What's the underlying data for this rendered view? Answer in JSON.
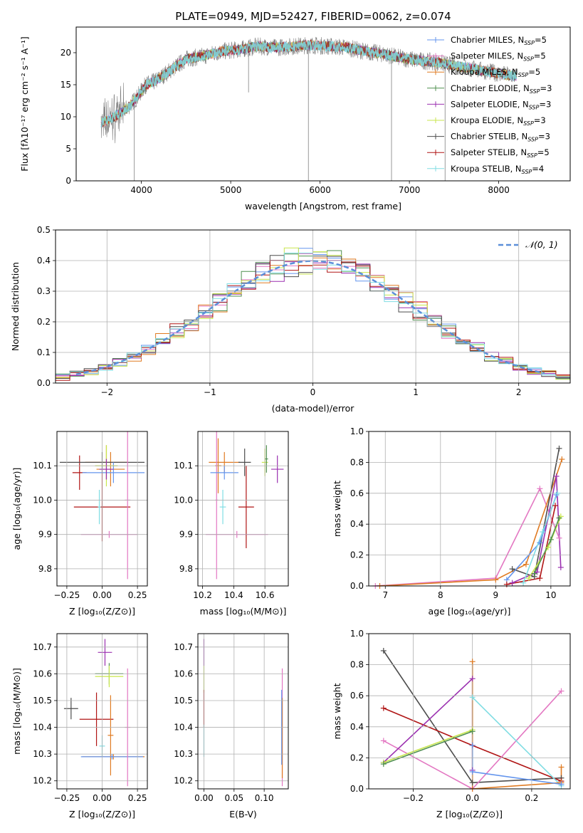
{
  "figure": {
    "title": "PLATE=0949, MJD=52427, FIBERID=0062, z=0.074"
  },
  "chart_data": [
    {
      "id": "spectrum",
      "type": "line",
      "xlabel": "wavelength [Angstrom, rest frame]",
      "ylabel": "Flux [fλ10⁻¹⁷ erg cm⁻² s⁻¹ A⁻¹]",
      "xlim": [
        3270,
        8800
      ],
      "ylim": [
        0,
        24
      ],
      "xticks": [
        4000,
        5000,
        6000,
        7000,
        8000
      ],
      "yticks": [
        0,
        5,
        10,
        15,
        20
      ],
      "grid": false,
      "legend_position": "upper right",
      "legend": [
        {
          "label": "Chabrier MILES, N",
          "sub": "SSP",
          "eq": "=5",
          "color": "#6495ed"
        },
        {
          "label": "Salpeter MILES, N",
          "sub": "SSP",
          "eq": "=5",
          "color": "#e377c2"
        },
        {
          "label": "Kroupa MILES, N",
          "sub": "SSP",
          "eq": "=5",
          "color": "#e07b22"
        },
        {
          "label": "Chabrier ELODIE, N",
          "sub": "SSP",
          "eq": "=3",
          "color": "#4f8f4f"
        },
        {
          "label": "Salpeter ELODIE, N",
          "sub": "SSP",
          "eq": "=3",
          "color": "#9b30b0"
        },
        {
          "label": "Kroupa ELODIE, N",
          "sub": "SSP",
          "eq": "=3",
          "color": "#c8e64c"
        },
        {
          "label": "Chabrier STELIB, N",
          "sub": "SSP",
          "eq": "=3",
          "color": "#4d4d4d"
        },
        {
          "label": "Salpeter STELIB, N",
          "sub": "SSP",
          "eq": "=5",
          "color": "#b01515"
        },
        {
          "label": "Kroupa STELIB, N",
          "sub": "SSP",
          "eq": "=4",
          "color": "#80dde3"
        }
      ],
      "continuum": {
        "wavelength": [
          3550,
          3700,
          3850,
          3950,
          4050,
          4150,
          4250,
          4400,
          4500,
          4700,
          4900,
          5100,
          5300,
          5500,
          5700,
          5900,
          6100,
          6300,
          6500,
          6700,
          6900,
          7100,
          7300,
          7500,
          7700,
          7900,
          8100,
          8200
        ],
        "flux": [
          9.0,
          10.0,
          11.5,
          13.0,
          15.0,
          15.5,
          16.5,
          18.0,
          19.0,
          19.5,
          20.2,
          20.5,
          21.0,
          20.8,
          21.0,
          21.2,
          21.0,
          20.8,
          20.2,
          19.8,
          19.2,
          18.8,
          18.5,
          18.0,
          17.5,
          17.0,
          16.5,
          16.3
        ]
      },
      "data_noise_amplitude": 1.4,
      "spikes": [
        {
          "x": 3920,
          "y": 0.0
        },
        {
          "x": 5200,
          "y": 13.8
        },
        {
          "x": 5870,
          "y": 0.0
        },
        {
          "x": 6800,
          "y": 0.0
        },
        {
          "x": 7400,
          "y": 0.0
        }
      ]
    },
    {
      "id": "residuals",
      "type": "step",
      "xlabel": "(data-model)/error",
      "ylabel": "Normed distribution",
      "xlim": [
        -2.5,
        2.5
      ],
      "ylim": [
        0,
        0.5
      ],
      "xticks": [
        -2,
        -1,
        0,
        1,
        2
      ],
      "xtick_labels": [
        "−2",
        "−1",
        "0",
        "1",
        "2"
      ],
      "yticks": [
        0.0,
        0.1,
        0.2,
        0.3,
        0.4,
        0.5
      ],
      "ytick_labels": [
        "0.0",
        "0.1",
        "0.2",
        "0.3",
        "0.4",
        "0.5"
      ],
      "grid": true,
      "legend": [
        {
          "label": "𝒩(0, 1)",
          "style": "dashed",
          "color": "#5b8fd9"
        }
      ],
      "bins": 36,
      "n_histograms": 9
    },
    {
      "id": "age-vs-Z",
      "type": "errorbar",
      "xlabel": "Z [log₁₀(Z/Z⊙)]",
      "ylabel": "age  [log₁₀(age/yr)]",
      "xlim": [
        -0.32,
        0.32
      ],
      "ylim": [
        9.75,
        10.2
      ],
      "xticks": [
        -0.25,
        0.0,
        0.25
      ],
      "xtick_labels": [
        "−0.25",
        "0.00",
        "0.25"
      ],
      "yticks": [
        9.8,
        9.9,
        10.0,
        10.1
      ],
      "ytick_labels": [
        "9.8",
        "9.9",
        "10.0",
        "10.1"
      ],
      "grid": true,
      "points": [
        {
          "x": -0.16,
          "xerr": 0.05,
          "y": 10.08,
          "yerr": 0.05,
          "color": "#b01515"
        },
        {
          "x": 0.06,
          "xerr": 0.1,
          "y": 10.09,
          "yerr": 0.05,
          "color": "#e07b22"
        },
        {
          "x": 0.03,
          "xerr": 0.15,
          "y": 10.11,
          "yerr": 0.05,
          "color": "#e07b22"
        },
        {
          "x": 0.0,
          "xerr": 0.3,
          "y": 10.11,
          "yerr": 0.03,
          "color": "#4d4d4d"
        },
        {
          "x": 0.08,
          "xerr": 0.22,
          "y": 10.08,
          "yerr": 0.03,
          "color": "#6495ed"
        },
        {
          "x": 0.03,
          "xerr": 0.08,
          "y": 10.1,
          "yerr": 0.06,
          "color": "#c8e64c"
        },
        {
          "x": 0.03,
          "xerr": 0.05,
          "y": 10.09,
          "yerr": 0.03,
          "color": "#9b30b0"
        },
        {
          "x": 0.0,
          "xerr": 0.2,
          "y": 9.98,
          "yerr": 0.1,
          "color": "#b01515"
        },
        {
          "x": -0.02,
          "xerr": 0.01,
          "y": 9.98,
          "yerr": 0.05,
          "color": "#80dde3"
        },
        {
          "x": 0.18,
          "xerr": 0.02,
          "y": 10.0,
          "yerr": 0.23,
          "color": "#e377c2"
        },
        {
          "x": 0.05,
          "xerr": 0.2,
          "y": 9.9,
          "yerr": 0.01,
          "color": "#e377c2"
        }
      ]
    },
    {
      "id": "age-vs-mass",
      "type": "errorbar",
      "xlabel": "mass [log₁₀(M/M⊙)]",
      "ylabel": "",
      "xlim": [
        10.17,
        10.75
      ],
      "ylim": [
        9.75,
        10.2
      ],
      "xticks": [
        10.2,
        10.4,
        10.6
      ],
      "xtick_labels": [
        "10.2",
        "10.4",
        "10.6"
      ],
      "yticks": [
        9.8,
        9.9,
        10.0,
        10.1
      ],
      "ytick_labels": [
        "9.8",
        "9.9",
        "10.0",
        "10.1"
      ],
      "grid": true,
      "points": [
        {
          "x": 10.3,
          "xerr": 0.02,
          "y": 10.1,
          "yerr": 0.08,
          "color": "#e07b22"
        },
        {
          "x": 10.34,
          "xerr": 0.1,
          "y": 10.11,
          "yerr": 0.03,
          "color": "#e07b22"
        },
        {
          "x": 10.29,
          "xerr": 0.01,
          "y": 10.0,
          "yerr": 0.23,
          "color": "#e377c2"
        },
        {
          "x": 10.42,
          "xerr": 0.2,
          "y": 9.9,
          "yerr": 0.01,
          "color": "#e377c2"
        },
        {
          "x": 10.34,
          "xerr": 0.09,
          "y": 10.08,
          "yerr": 0.02,
          "color": "#6495ed"
        },
        {
          "x": 10.47,
          "xerr": 0.04,
          "y": 10.11,
          "yerr": 0.04,
          "color": "#4d4d4d"
        },
        {
          "x": 10.6,
          "xerr": 0.02,
          "y": 10.11,
          "yerr": 0.04,
          "color": "#c8e64c"
        },
        {
          "x": 10.61,
          "xerr": 0.01,
          "y": 10.12,
          "yerr": 0.04,
          "color": "#4f8f4f"
        },
        {
          "x": 10.68,
          "xerr": 0.04,
          "y": 10.09,
          "yerr": 0.04,
          "color": "#9b30b0"
        },
        {
          "x": 10.48,
          "xerr": 0.05,
          "y": 9.98,
          "yerr": 0.12,
          "color": "#b01515"
        },
        {
          "x": 10.33,
          "xerr": 0.02,
          "y": 9.98,
          "yerr": 0.05,
          "color": "#80dde3"
        }
      ]
    },
    {
      "id": "massweight-vs-age",
      "type": "line",
      "xlabel": "age  [log₁₀(age/yr)]",
      "ylabel": "mass weight",
      "xlim": [
        6.7,
        10.35
      ],
      "ylim": [
        0,
        1.0
      ],
      "xticks": [
        7,
        8,
        9,
        10
      ],
      "xtick_labels": [
        "7",
        "8",
        "9",
        "10"
      ],
      "yticks": [
        0.0,
        0.2,
        0.4,
        0.6,
        0.8,
        1.0
      ],
      "ytick_labels": [
        "0.0",
        "0.2",
        "0.4",
        "0.6",
        "0.8",
        "1.0"
      ],
      "grid": true,
      "series": [
        {
          "color": "#e377c2",
          "x": [
            6.82,
            9.0,
            9.8,
            10.15
          ],
          "y": [
            0.0,
            0.05,
            0.63,
            0.31
          ]
        },
        {
          "color": "#e07b22",
          "x": [
            6.9,
            9.0,
            9.55,
            10.2
          ],
          "y": [
            0.0,
            0.04,
            0.14,
            0.82
          ]
        },
        {
          "color": "#4d4d4d",
          "x": [
            9.3,
            9.7,
            10.15
          ],
          "y": [
            0.11,
            0.06,
            0.89
          ]
        },
        {
          "color": "#6495ed",
          "x": [
            9.2,
            9.8,
            10.1
          ],
          "y": [
            0.04,
            0.28,
            0.59
          ]
        },
        {
          "color": "#9b30b0",
          "x": [
            9.3,
            9.75,
            10.1,
            10.18
          ],
          "y": [
            0.02,
            0.09,
            0.71,
            0.12
          ]
        },
        {
          "color": "#b01515",
          "x": [
            9.2,
            9.8,
            10.08
          ],
          "y": [
            0.01,
            0.05,
            0.52
          ]
        },
        {
          "color": "#c8e64c",
          "x": [
            9.6,
            9.95,
            10.18
          ],
          "y": [
            0.05,
            0.25,
            0.45
          ]
        },
        {
          "color": "#4f8f4f",
          "x": [
            9.7,
            10.0,
            10.15
          ],
          "y": [
            0.08,
            0.3,
            0.44
          ]
        },
        {
          "color": "#80dde3",
          "x": [
            9.5,
            9.85,
            10.12
          ],
          "y": [
            0.02,
            0.35,
            0.6
          ]
        }
      ]
    },
    {
      "id": "mass-vs-Z",
      "type": "errorbar",
      "xlabel": "Z [log₁₀(Z/Z⊙)]",
      "ylabel": "mass [log₁₀(M/M⊙)]",
      "xlim": [
        -0.32,
        0.32
      ],
      "ylim": [
        10.17,
        10.75
      ],
      "xticks": [
        -0.25,
        0.0,
        0.25
      ],
      "xtick_labels": [
        "−0.25",
        "0.00",
        "0.25"
      ],
      "yticks": [
        10.2,
        10.3,
        10.4,
        10.5,
        10.6,
        10.7
      ],
      "ytick_labels": [
        "10.2",
        "10.3",
        "10.4",
        "10.5",
        "10.6",
        "10.7"
      ],
      "grid": true,
      "points": [
        {
          "x": 0.02,
          "xerr": 0.05,
          "y": 10.68,
          "yerr": 0.05,
          "color": "#9b30b0"
        },
        {
          "x": 0.05,
          "xerr": 0.1,
          "y": 10.6,
          "yerr": 0.04,
          "color": "#4f8f4f"
        },
        {
          "x": 0.05,
          "xerr": 0.1,
          "y": 10.59,
          "yerr": 0.04,
          "color": "#c8e64c"
        },
        {
          "x": -0.22,
          "xerr": 0.05,
          "y": 10.47,
          "yerr": 0.04,
          "color": "#4d4d4d"
        },
        {
          "x": -0.04,
          "xerr": 0.12,
          "y": 10.43,
          "yerr": 0.1,
          "color": "#b01515"
        },
        {
          "x": 0.0,
          "xerr": 0.02,
          "y": 10.33,
          "yerr": 0.04,
          "color": "#80dde3"
        },
        {
          "x": 0.08,
          "xerr": 0.22,
          "y": 10.29,
          "yerr": 0.01,
          "color": "#e07b22"
        },
        {
          "x": 0.06,
          "xerr": 0.02,
          "y": 10.37,
          "yerr": 0.15,
          "color": "#e07b22"
        },
        {
          "x": 0.07,
          "xerr": 0.22,
          "y": 10.29,
          "yerr": 0.01,
          "color": "#6495ed"
        },
        {
          "x": 0.18,
          "xerr": 0.02,
          "y": 10.4,
          "yerr": 0.22,
          "color": "#e377c2"
        }
      ]
    },
    {
      "id": "mass-vs-EBV",
      "type": "errorbar",
      "xlabel": "E(B-V)",
      "ylabel": "",
      "xlim": [
        -0.01,
        0.14
      ],
      "ylim": [
        10.17,
        10.75
      ],
      "xticks": [
        0.0,
        0.05,
        0.1
      ],
      "xtick_labels": [
        "0.00",
        "0.05",
        "0.10"
      ],
      "yticks": [
        10.2,
        10.3,
        10.4,
        10.5,
        10.6,
        10.7
      ],
      "ytick_labels": [
        "10.2",
        "10.3",
        "10.4",
        "10.5",
        "10.6",
        "10.7"
      ],
      "grid": true,
      "points": [
        {
          "x": 0.0,
          "xerr": 0.0,
          "y": 10.68,
          "yerr": 0.05,
          "color": "#9b30b0"
        },
        {
          "x": 0.0,
          "xerr": 0.0,
          "y": 10.58,
          "yerr": 0.05,
          "color": "#c8e64c"
        },
        {
          "x": 0.0,
          "xerr": 0.0,
          "y": 10.47,
          "yerr": 0.07,
          "color": "#b01515"
        },
        {
          "x": 0.0,
          "xerr": 0.0,
          "y": 10.35,
          "yerr": 0.06,
          "color": "#80dde3"
        },
        {
          "x": 0.13,
          "xerr": 0.0,
          "y": 10.4,
          "yerr": 0.22,
          "color": "#e377c2"
        },
        {
          "x": 0.13,
          "xerr": 0.0,
          "y": 10.36,
          "yerr": 0.15,
          "color": "#e07b22"
        },
        {
          "x": 0.129,
          "xerr": 0.0,
          "y": 10.4,
          "yerr": 0.14,
          "color": "#6495ed"
        }
      ]
    },
    {
      "id": "massweight-vs-Z",
      "type": "line",
      "xlabel": "Z [log₁₀(Z/Z⊙)]",
      "ylabel": "mass weight",
      "xlim": [
        -0.35,
        0.33
      ],
      "ylim": [
        0,
        1.0
      ],
      "xticks": [
        -0.2,
        0.0,
        0.2
      ],
      "xtick_labels": [
        "−0.2",
        "0.0",
        "0.2"
      ],
      "yticks": [
        0.0,
        0.2,
        0.4,
        0.6,
        0.8,
        1.0
      ],
      "ytick_labels": [
        "0.0",
        "0.2",
        "0.4",
        "0.6",
        "0.8",
        "1.0"
      ],
      "grid": true,
      "series": [
        {
          "color": "#4d4d4d",
          "x": [
            -0.3,
            0.0,
            0.3
          ],
          "y": [
            0.89,
            0.04,
            0.07
          ]
        },
        {
          "color": "#b01515",
          "x": [
            -0.3,
            0.0,
            0.3
          ],
          "y": [
            0.52,
            0.28,
            0.05
          ]
        },
        {
          "color": "#e377c2",
          "x": [
            -0.3,
            0.0,
            0.3
          ],
          "y": [
            0.31,
            0.0,
            0.63
          ]
        },
        {
          "color": "#9b30b0",
          "x": [
            -0.3,
            0.0,
            0.0
          ],
          "y": [
            0.17,
            0.71,
            0.12
          ]
        },
        {
          "color": "#c8e64c",
          "x": [
            -0.3,
            0.0
          ],
          "y": [
            0.17,
            0.38
          ]
        },
        {
          "color": "#4f8f4f",
          "x": [
            -0.3,
            0.0
          ],
          "y": [
            0.16,
            0.37
          ]
        },
        {
          "color": "#80dde3",
          "x": [
            0.0,
            0.3
          ],
          "y": [
            0.59,
            0.02
          ]
        },
        {
          "color": "#e07b22",
          "x": [
            0.0,
            0.0,
            0.3,
            0.3
          ],
          "y": [
            0.82,
            0.0,
            0.04,
            0.14
          ]
        },
        {
          "color": "#6495ed",
          "x": [
            0.0,
            0.0,
            0.3
          ],
          "y": [
            0.28,
            0.11,
            0.03
          ]
        }
      ]
    }
  ]
}
